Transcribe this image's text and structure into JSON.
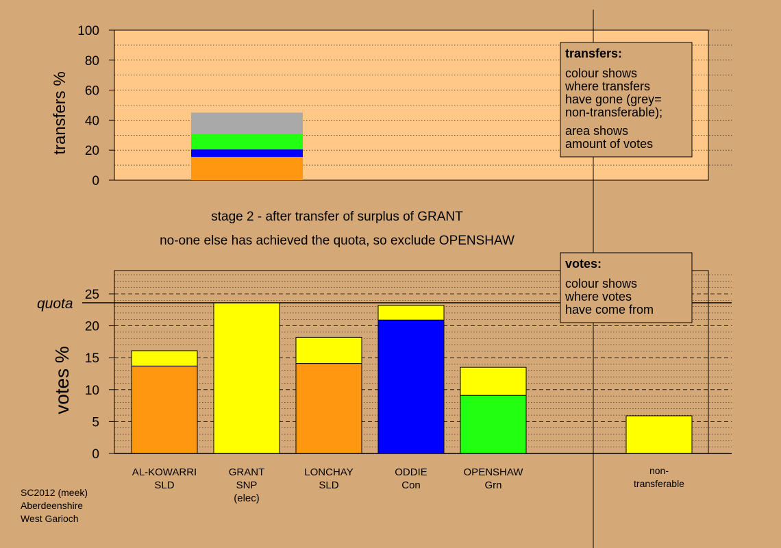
{
  "chart_data": [
    {
      "type": "bar",
      "subtype": "stacked",
      "name": "transfers",
      "ylabel": "transfers %",
      "ylim": [
        0,
        100
      ],
      "yticks": [
        0,
        20,
        40,
        60,
        80,
        100
      ],
      "bar_position": "GRANT",
      "segments": [
        {
          "value": 15.5,
          "color": "#ff9710"
        },
        {
          "value": 5.0,
          "color": "#0000ff"
        },
        {
          "value": 10.5,
          "color": "#22ff11"
        },
        {
          "value": 14.0,
          "color": "#a9a9a9"
        }
      ],
      "legend": {
        "title": "transfers:",
        "lines1": [
          "colour shows",
          "where transfers",
          "have gone (grey=",
          "non-transferable);"
        ],
        "lines2": [
          "area shows",
          "amount of votes"
        ]
      }
    },
    {
      "type": "bar",
      "subtype": "stacked",
      "name": "votes",
      "ylabel": "votes %",
      "ylim": [
        0,
        28
      ],
      "yticks": [
        0,
        5,
        10,
        15,
        20,
        25
      ],
      "quota": 23.6,
      "quota_label": "quota",
      "categories": [
        {
          "name": "AL-KOWARRI",
          "party": "SLD",
          "extra": "",
          "segments": [
            {
              "value": 13.7,
              "color": "#ff9710"
            },
            {
              "value": 2.4,
              "color": "#ffff00"
            }
          ]
        },
        {
          "name": "GRANT",
          "party": "SNP",
          "extra": "(elec)",
          "segments": [
            {
              "value": 23.6,
              "color": "#ffff00"
            }
          ]
        },
        {
          "name": "LONCHAY",
          "party": "SLD",
          "extra": "",
          "segments": [
            {
              "value": 14.1,
              "color": "#ff9710"
            },
            {
              "value": 4.1,
              "color": "#ffff00"
            }
          ]
        },
        {
          "name": "ODDIE",
          "party": "Con",
          "extra": "",
          "segments": [
            {
              "value": 20.9,
              "color": "#0000ff"
            },
            {
              "value": 2.3,
              "color": "#ffff00"
            }
          ]
        },
        {
          "name": "OPENSHAW",
          "party": "Grn",
          "extra": "",
          "segments": [
            {
              "value": 9.1,
              "color": "#22ff11"
            },
            {
              "value": 4.4,
              "color": "#ffff00"
            }
          ]
        }
      ],
      "nontransferable": {
        "line1": "non-",
        "line2": "transferable",
        "value": 5.9,
        "color": "#ffff00"
      },
      "legend": {
        "title": "votes:",
        "lines": [
          "colour shows",
          "where votes",
          "have come from"
        ]
      }
    }
  ],
  "stage_text": "stage 2 - after transfer of surplus of GRANT",
  "exclude_text": "no-one else has achieved the quota, so exclude OPENSHAW",
  "footer": {
    "line1": "SC2012 (meek)",
    "line2": "Aberdeenshire",
    "line3": "West Garioch"
  },
  "colors": {
    "background": "#d5a877",
    "panel": "#ffc788",
    "legend_box": "#d5a877"
  }
}
